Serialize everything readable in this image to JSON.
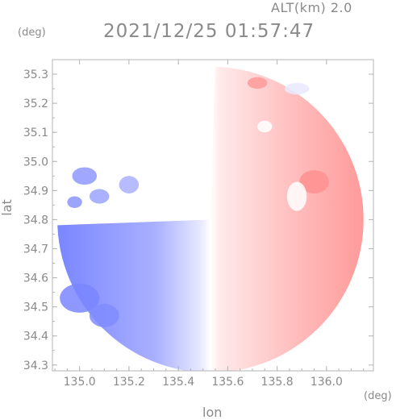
{
  "header": {
    "alt_label": "ALT(km) 2.0",
    "timestamp": "2021/12/25 01:57:47"
  },
  "chart_data": {
    "type": "heatmap",
    "title": "2021/12/25 01:57:47",
    "subtitle": "ALT(km) 2.0",
    "xlabel": "lon",
    "ylabel": "lat",
    "x_unit": "(deg)",
    "y_unit": "(deg)",
    "xlim": [
      134.89,
      136.19
    ],
    "ylim": [
      34.28,
      35.35
    ],
    "x_ticks": [
      135.0,
      135.2,
      135.4,
      135.6,
      135.8,
      136.0
    ],
    "x_tick_labels": [
      "135.0",
      "135.2",
      "135.4",
      "135.6",
      "135.8",
      "136.0"
    ],
    "y_ticks": [
      34.3,
      34.4,
      34.5,
      34.6,
      34.7,
      34.8,
      34.9,
      35.0,
      35.1,
      35.2,
      35.3
    ],
    "y_tick_labels": [
      "34.3",
      "34.4",
      "34.5",
      "34.6",
      "34.7",
      "34.8",
      "34.9",
      "35.0",
      "35.1",
      "35.2",
      "35.3"
    ],
    "grid": false,
    "legend": "none",
    "colors": {
      "negative": "#7a86ff",
      "negative_light": "#dfe2ff",
      "positive": "#ff8a8a",
      "positive_light": "#ffe1e1",
      "axis": "#b4b4b4",
      "text": "#8a8a8a"
    },
    "field": {
      "center": [
        135.53,
        34.8
      ],
      "radius_deg": 0.62,
      "boundary_lon": 135.5,
      "description_shape": "circular radar echo; negative (blue) west, positive (red) east"
    }
  }
}
